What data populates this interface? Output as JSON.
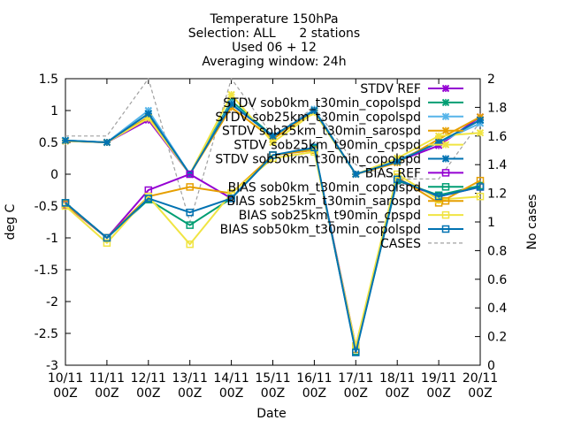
{
  "chart_data": {
    "type": "line",
    "title_lines": [
      "Temperature 150hPa",
      "Selection: ALL      2 stations",
      "Used 06 + 12",
      "Averaging window: 24h"
    ],
    "xlabel": "Date",
    "ylabel": "deg C",
    "y2label": "No cases",
    "categories": [
      [
        "10/11",
        "00Z"
      ],
      [
        "11/11",
        "00Z"
      ],
      [
        "12/11",
        "00Z"
      ],
      [
        "13/11",
        "00Z"
      ],
      [
        "14/11",
        "00Z"
      ],
      [
        "15/11",
        "00Z"
      ],
      [
        "16/11",
        "00Z"
      ],
      [
        "17/11",
        "00Z"
      ],
      [
        "18/11",
        "00Z"
      ],
      [
        "19/11",
        "00Z"
      ],
      [
        "20/11",
        "00Z"
      ]
    ],
    "ylim": [
      -3,
      1.5
    ],
    "y2lim": [
      0,
      2
    ],
    "yticks": [
      "1.5",
      "1",
      "0.5",
      "0",
      "-0.5",
      "-1",
      "-1.5",
      "-2",
      "-2.5",
      "-3"
    ],
    "y2ticks": [
      "2",
      "1.8",
      "1.6",
      "1.4",
      "1.2",
      "1",
      "0.8",
      "0.6",
      "0.4",
      "0.2",
      "0"
    ],
    "legend_position": "top-right",
    "grid": false,
    "series": [
      {
        "name": "STDV REF",
        "axis": "y",
        "marker": "x",
        "color": "#9400d3",
        "values": [
          0.52,
          0.5,
          0.85,
          0.0,
          1.1,
          0.6,
          1.0,
          0.0,
          0.2,
          0.45,
          0.9
        ]
      },
      {
        "name": "STDV sob0km_t30min_copolspd",
        "axis": "y",
        "marker": "x",
        "color": "#009e73",
        "values": [
          0.53,
          0.5,
          0.95,
          0.0,
          1.15,
          0.6,
          1.0,
          0.0,
          0.2,
          0.5,
          0.85
        ]
      },
      {
        "name": "STDV sob25km_t30min_copolspd",
        "axis": "y",
        "marker": "x",
        "color": "#56b4e9",
        "values": [
          0.53,
          0.5,
          1.0,
          0.0,
          1.12,
          0.58,
          1.02,
          0.0,
          0.22,
          0.5,
          0.8
        ]
      },
      {
        "name": "STDV sob25km_t30min_sarospd",
        "axis": "y",
        "marker": "x",
        "color": "#e69f00",
        "values": [
          0.52,
          0.5,
          0.9,
          0.0,
          1.05,
          0.55,
          1.0,
          0.0,
          0.18,
          0.55,
          0.9
        ]
      },
      {
        "name": "STDV sob25km_t90min_cpspd",
        "axis": "y",
        "marker": "x",
        "color": "#f0e442",
        "values": [
          0.52,
          0.5,
          0.88,
          0.0,
          1.25,
          0.5,
          0.97,
          0.0,
          0.25,
          0.6,
          0.65
        ]
      },
      {
        "name": "STDV sob50km_t30min_copolspd",
        "axis": "y",
        "marker": "x",
        "color": "#0072b2",
        "values": [
          0.53,
          0.5,
          0.95,
          0.0,
          1.1,
          0.6,
          1.0,
          0.0,
          0.2,
          0.5,
          0.85
        ]
      },
      {
        "name": "BIAS REF",
        "axis": "y",
        "marker": "square",
        "color": "#9400d3",
        "values": [
          -0.48,
          -1.0,
          -0.25,
          0.0,
          -0.38,
          0.3,
          0.38,
          -2.7,
          -0.1,
          -0.35,
          -0.2
        ]
      },
      {
        "name": "BIAS sob0km_t30min_copolspd",
        "axis": "y",
        "marker": "square",
        "color": "#009e73",
        "values": [
          -0.45,
          -1.0,
          -0.4,
          -0.8,
          -0.38,
          0.3,
          0.4,
          -2.78,
          -0.1,
          -0.33,
          -0.18
        ]
      },
      {
        "name": "BIAS sob25km_t30min_sarospd",
        "axis": "y",
        "marker": "square",
        "color": "#e69f00",
        "values": [
          -0.47,
          -1.0,
          -0.35,
          -0.2,
          -0.3,
          0.3,
          0.38,
          -2.75,
          -0.05,
          -0.45,
          -0.1
        ]
      },
      {
        "name": "BIAS sob25km_t90min_cpspd",
        "axis": "y",
        "marker": "square",
        "color": "#f0e442",
        "values": [
          -0.5,
          -1.08,
          -0.35,
          -1.1,
          -0.3,
          0.25,
          0.35,
          -2.7,
          0.0,
          -0.4,
          -0.35
        ]
      },
      {
        "name": "BIAS sob50km_t30min_copolspd",
        "axis": "y",
        "marker": "square",
        "color": "#0072b2",
        "values": [
          -0.45,
          -1.0,
          -0.38,
          -0.6,
          -0.38,
          0.3,
          0.42,
          -2.8,
          -0.08,
          -0.35,
          -0.2
        ]
      },
      {
        "name": "CASES",
        "axis": "y2",
        "marker": "none",
        "color": "#a0a0a0",
        "dashed": true,
        "values": [
          1.6,
          1.6,
          2.0,
          1.0,
          2.0,
          1.6,
          1.8,
          1.4,
          1.3,
          1.3,
          1.7
        ]
      }
    ]
  }
}
